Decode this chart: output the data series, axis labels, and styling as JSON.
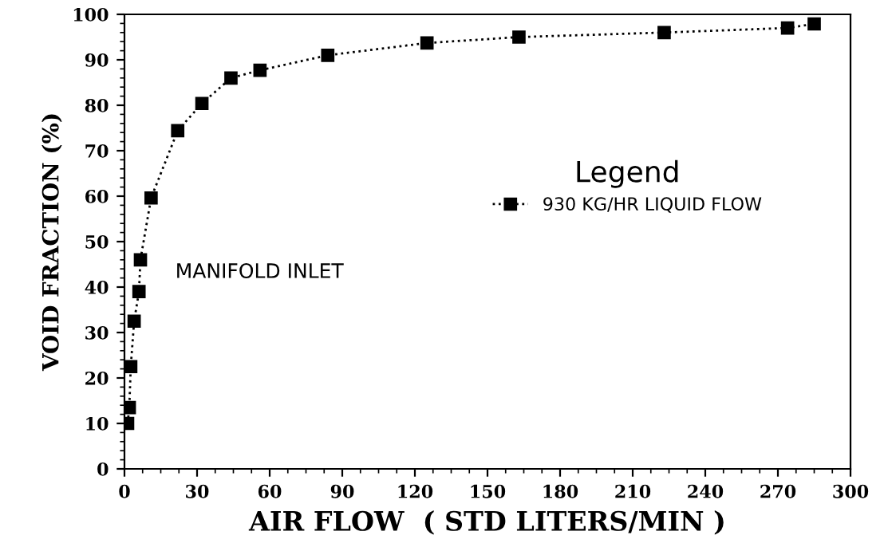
{
  "chart_data": {
    "type": "line",
    "xlabel": "AIR FLOW  ( STD LITERS/MIN )",
    "ylabel": "VOID FRACTION (%)",
    "legend_title": "Legend",
    "annotations": [
      "MANIFOLD INLET"
    ],
    "series": [
      {
        "name": "930 KG/HR LIQUID FLOW",
        "color": "#000000",
        "x": [
          1.3,
          2,
          2.6,
          4,
          6,
          6.6,
          11,
          22,
          32,
          44,
          56,
          84,
          125,
          163,
          223,
          274,
          285
        ],
        "values": [
          10,
          13.5,
          22.5,
          32.5,
          39,
          46,
          59.6,
          74.4,
          80.4,
          86,
          87.7,
          91,
          93.7,
          95,
          96,
          97,
          97.9
        ]
      }
    ],
    "xlim": [
      0,
      300
    ],
    "xticks": [
      0,
      30,
      60,
      90,
      120,
      150,
      180,
      210,
      240,
      270,
      300
    ],
    "ylim": [
      0,
      100
    ],
    "yticks": [
      0,
      10,
      20,
      30,
      40,
      50,
      60,
      70,
      80,
      90,
      100
    ],
    "grid": false,
    "legend": "right",
    "marker": "square",
    "line_style": "dotted"
  }
}
